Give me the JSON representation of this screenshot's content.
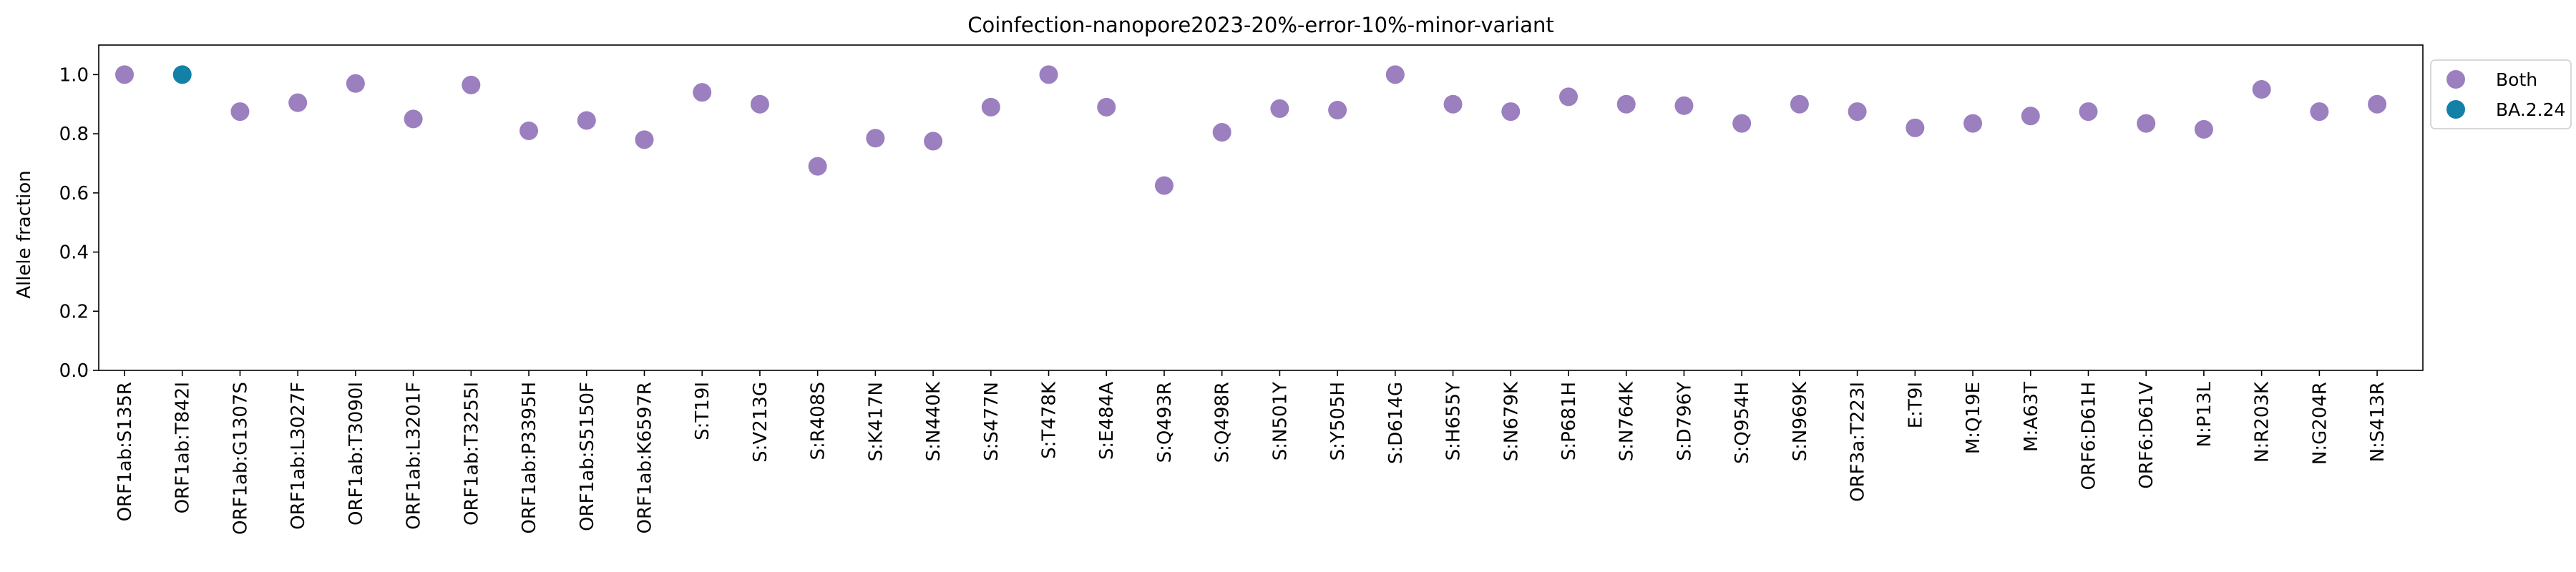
{
  "chart_data": {
    "type": "scatter",
    "title": "Coinfection-nanopore2023-20%-error-10%-minor-variant",
    "xlabel": "",
    "ylabel": "Allele fraction",
    "ylim": [
      0.0,
      1.1
    ],
    "yticks": [
      "0.0",
      "0.2",
      "0.4",
      "0.6",
      "0.8",
      "1.0"
    ],
    "grid": false,
    "legend_position": "outside top-right",
    "categories": [
      "ORF1ab:S135R",
      "ORF1ab:T842I",
      "ORF1ab:G1307S",
      "ORF1ab:L3027F",
      "ORF1ab:T3090I",
      "ORF1ab:L3201F",
      "ORF1ab:T3255I",
      "ORF1ab:P3395H",
      "ORF1ab:S5150F",
      "ORF1ab:K6597R",
      "S:T19I",
      "S:V213G",
      "S:R408S",
      "S:K417N",
      "S:N440K",
      "S:S477N",
      "S:T478K",
      "S:E484A",
      "S:Q493R",
      "S:Q498R",
      "S:N501Y",
      "S:Y505H",
      "S:D614G",
      "S:H655Y",
      "S:N679K",
      "S:P681H",
      "S:N764K",
      "S:D796Y",
      "S:Q954H",
      "S:N969K",
      "ORF3a:T223I",
      "E:T9I",
      "M:Q19E",
      "M:A63T",
      "ORF6:D61H",
      "ORF6:D61V",
      "N:P13L",
      "N:R203K",
      "N:G204R",
      "N:S413R"
    ],
    "series": [
      {
        "name": "Both",
        "color": "#9b7fbf",
        "points": [
          {
            "x": "ORF1ab:S135R",
            "y": 1.0
          },
          {
            "x": "ORF1ab:G1307S",
            "y": 0.875
          },
          {
            "x": "ORF1ab:L3027F",
            "y": 0.905
          },
          {
            "x": "ORF1ab:T3090I",
            "y": 0.97
          },
          {
            "x": "ORF1ab:L3201F",
            "y": 0.85
          },
          {
            "x": "ORF1ab:T3255I",
            "y": 0.965
          },
          {
            "x": "ORF1ab:P3395H",
            "y": 0.81
          },
          {
            "x": "ORF1ab:S5150F",
            "y": 0.845
          },
          {
            "x": "ORF1ab:K6597R",
            "y": 0.78
          },
          {
            "x": "S:T19I",
            "y": 0.94
          },
          {
            "x": "S:V213G",
            "y": 0.9
          },
          {
            "x": "S:R408S",
            "y": 0.69
          },
          {
            "x": "S:K417N",
            "y": 0.785
          },
          {
            "x": "S:N440K",
            "y": 0.775
          },
          {
            "x": "S:S477N",
            "y": 0.89
          },
          {
            "x": "S:T478K",
            "y": 1.0
          },
          {
            "x": "S:E484A",
            "y": 0.89
          },
          {
            "x": "S:Q493R",
            "y": 0.625
          },
          {
            "x": "S:Q498R",
            "y": 0.805
          },
          {
            "x": "S:N501Y",
            "y": 0.885
          },
          {
            "x": "S:Y505H",
            "y": 0.88
          },
          {
            "x": "S:D614G",
            "y": 1.0
          },
          {
            "x": "S:H655Y",
            "y": 0.9
          },
          {
            "x": "S:N679K",
            "y": 0.875
          },
          {
            "x": "S:P681H",
            "y": 0.925
          },
          {
            "x": "S:N764K",
            "y": 0.9
          },
          {
            "x": "S:D796Y",
            "y": 0.895
          },
          {
            "x": "S:Q954H",
            "y": 0.835
          },
          {
            "x": "S:N969K",
            "y": 0.9
          },
          {
            "x": "ORF3a:T223I",
            "y": 0.875
          },
          {
            "x": "E:T9I",
            "y": 0.82
          },
          {
            "x": "M:Q19E",
            "y": 0.835
          },
          {
            "x": "M:A63T",
            "y": 0.86
          },
          {
            "x": "ORF6:D61H",
            "y": 0.875
          },
          {
            "x": "ORF6:D61V",
            "y": 0.835
          },
          {
            "x": "N:P13L",
            "y": 0.815
          },
          {
            "x": "N:R203K",
            "y": 0.95
          },
          {
            "x": "N:G204R",
            "y": 0.875
          },
          {
            "x": "N:S413R",
            "y": 0.9
          }
        ]
      },
      {
        "name": "BA.2.24",
        "color": "#1380a8",
        "points": [
          {
            "x": "ORF1ab:T842I",
            "y": 1.0
          }
        ]
      }
    ]
  }
}
